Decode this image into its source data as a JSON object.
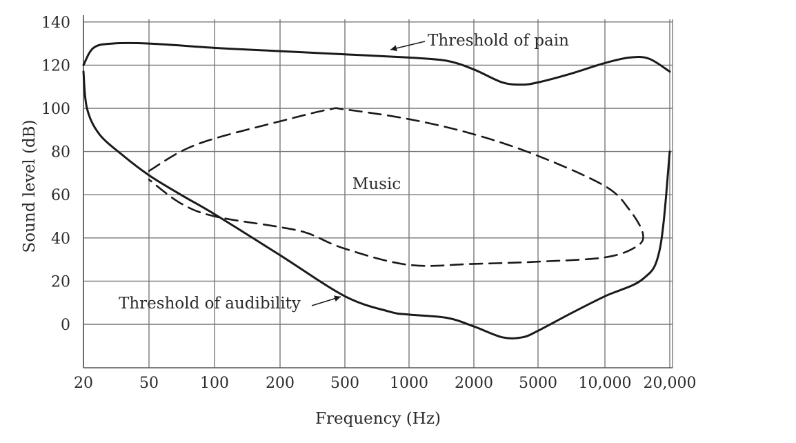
{
  "chart_data": {
    "type": "line",
    "title": "",
    "xlabel": "Frequency (Hz)",
    "ylabel": "Sound level (dB)",
    "x_scale": "categorical-log",
    "x_tick_labels": [
      "20",
      "50",
      "100",
      "200",
      "500",
      "1000",
      "2000",
      "5000",
      "10,000",
      "20,000"
    ],
    "y_ticks": [
      0,
      20,
      40,
      60,
      80,
      100,
      120,
      140
    ],
    "ylim": [
      -20,
      140
    ],
    "grid": true,
    "series": [
      {
        "name": "Threshold of pain",
        "style": "solid",
        "points": [
          [
            20,
            120
          ],
          [
            23,
            128
          ],
          [
            30,
            130
          ],
          [
            50,
            130
          ],
          [
            100,
            128
          ],
          [
            200,
            126.5
          ],
          [
            500,
            125
          ],
          [
            1000,
            123.5
          ],
          [
            1500,
            122
          ],
          [
            2000,
            118
          ],
          [
            3000,
            112
          ],
          [
            4000,
            111
          ],
          [
            5000,
            112
          ],
          [
            7000,
            116
          ],
          [
            10000,
            121
          ],
          [
            13000,
            123.5
          ],
          [
            16000,
            123
          ],
          [
            20000,
            117
          ]
        ]
      },
      {
        "name": "Threshold of audibility",
        "style": "solid",
        "points": [
          [
            20,
            117
          ],
          [
            21,
            100
          ],
          [
            25,
            88
          ],
          [
            35,
            78
          ],
          [
            50,
            69
          ],
          [
            70,
            60
          ],
          [
            100,
            51
          ],
          [
            200,
            32
          ],
          [
            500,
            13
          ],
          [
            800,
            6
          ],
          [
            1000,
            4.5
          ],
          [
            1500,
            3
          ],
          [
            2000,
            -1
          ],
          [
            3000,
            -6
          ],
          [
            4000,
            -6
          ],
          [
            5000,
            -3
          ],
          [
            7000,
            5
          ],
          [
            10000,
            13
          ],
          [
            15000,
            21
          ],
          [
            18000,
            35
          ],
          [
            20000,
            80
          ]
        ]
      },
      {
        "name": "Music",
        "style": "dashed",
        "points": [
          [
            50,
            71
          ],
          [
            70,
            80
          ],
          [
            100,
            86
          ],
          [
            200,
            94
          ],
          [
            400,
            99.5
          ],
          [
            500,
            99.5
          ],
          [
            1000,
            95
          ],
          [
            2000,
            88
          ],
          [
            5000,
            78
          ],
          [
            10000,
            64
          ],
          [
            13000,
            53
          ],
          [
            15000,
            42
          ],
          [
            14000,
            36
          ],
          [
            10000,
            31
          ],
          [
            5000,
            29
          ],
          [
            2000,
            28
          ],
          [
            1000,
            27.5
          ],
          [
            500,
            35
          ],
          [
            300,
            42
          ],
          [
            200,
            45
          ],
          [
            100,
            50
          ],
          [
            70,
            56
          ],
          [
            50,
            67
          ]
        ]
      }
    ],
    "annotations": [
      {
        "text": "Threshold of pain",
        "points_to": "Threshold of pain",
        "at_x": 500,
        "at_y": 125
      },
      {
        "text": "Threshold of audibility",
        "points_to": "Threshold of audibility",
        "at_x": 500,
        "at_y": 12
      },
      {
        "text": "Music",
        "points_to": "Music",
        "at_x": 1000,
        "at_y": 65
      }
    ]
  }
}
